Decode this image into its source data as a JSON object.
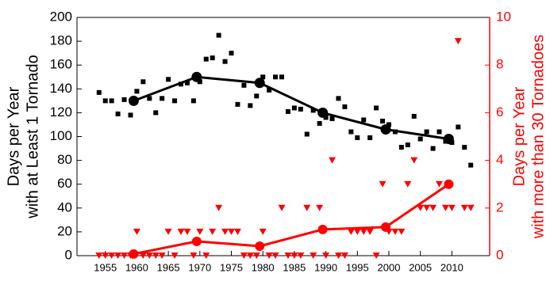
{
  "chart_data": {
    "type": "scatter",
    "ylabel": [
      "Days per Year",
      "with at Least 1 Tornado"
    ],
    "y2label": [
      "Days per Year",
      "with more than 30 Tornadoes"
    ],
    "xlim": [
      1950.5,
      2016
    ],
    "xticks": [
      1955,
      1960,
      1965,
      1970,
      1975,
      1980,
      1985,
      1990,
      1995,
      2000,
      2005,
      2010
    ],
    "ylim": [
      0,
      200
    ],
    "yticks": [
      0,
      20,
      40,
      60,
      80,
      100,
      120,
      140,
      160,
      180,
      200
    ],
    "y2lim": [
      0,
      10
    ],
    "y2ticks": [
      0,
      2,
      4,
      6,
      8,
      10
    ],
    "y2color": "#ff0000",
    "series": [
      {
        "mode": "markers",
        "marker": "square",
        "color": "#000000",
        "x": [
          1954,
          1955,
          1956,
          1957,
          1958,
          1959,
          1960,
          1961,
          1962,
          1963,
          1964,
          1965,
          1966,
          1967,
          1968,
          1969,
          1970,
          1971,
          1972,
          1973,
          1974,
          1975,
          1976,
          1977,
          1978,
          1979,
          1980,
          1981,
          1982,
          1983,
          1984,
          1985,
          1986,
          1987,
          1988,
          1989,
          1990,
          1991,
          1992,
          1993,
          1994,
          1995,
          1996,
          1997,
          1998,
          1999,
          2000,
          2001,
          2002,
          2003,
          2004,
          2005,
          2006,
          2007,
          2008,
          2009,
          2010,
          2011,
          2012,
          2013
        ],
        "values": [
          137,
          130,
          130,
          119,
          131,
          118,
          138,
          146,
          132,
          120,
          132,
          148,
          130,
          144,
          145,
          130,
          146,
          165,
          166,
          185,
          163,
          170,
          127,
          143,
          126,
          134,
          150,
          139,
          150,
          150,
          121,
          124,
          123,
          102,
          122,
          111,
          116,
          115,
          132,
          125,
          104,
          99,
          114,
          99,
          124,
          113,
          110,
          104,
          91,
          93,
          117,
          98,
          104,
          90,
          104,
          96,
          95,
          108,
          91,
          76
        ]
      },
      {
        "mode": "lines+markers",
        "marker": "circle",
        "color": "#000000",
        "x": [
          1959.5,
          1969.5,
          1979.5,
          1989.5,
          1999.5,
          2009.5
        ],
        "values": [
          130,
          150,
          145,
          120,
          106,
          98
        ]
      },
      {
        "mode": "markers",
        "marker": "triangle-down",
        "color": "#ff0000",
        "axis": "y2",
        "x": [
          1954,
          1955,
          1956,
          1957,
          1958,
          1959,
          1960,
          1961,
          1962,
          1963,
          1964,
          1965,
          1966,
          1967,
          1968,
          1969,
          1970,
          1971,
          1972,
          1973,
          1974,
          1975,
          1976,
          1977,
          1978,
          1979,
          1980,
          1981,
          1982,
          1983,
          1984,
          1985,
          1986,
          1987,
          1988,
          1989,
          1990,
          1991,
          1992,
          1993,
          1994,
          1995,
          1996,
          1997,
          1998,
          1999,
          2000,
          2001,
          2002,
          2003,
          2004,
          2005,
          2006,
          2007,
          2008,
          2009,
          2010,
          2011,
          2012,
          2013
        ],
        "values": [
          0,
          0,
          0,
          0,
          0,
          0,
          1,
          0,
          0,
          0,
          0,
          1,
          0,
          1,
          1,
          0,
          1,
          0,
          1,
          2,
          1,
          1,
          1,
          0,
          0,
          0,
          1,
          0,
          0,
          2,
          0,
          0,
          0,
          2,
          0,
          2,
          0,
          4,
          0,
          0,
          1,
          1,
          1,
          1,
          0,
          3,
          1,
          1,
          1,
          3,
          4,
          2,
          2,
          2,
          3,
          2,
          2,
          9,
          2,
          2
        ]
      },
      {
        "mode": "lines+markers",
        "marker": "circle",
        "color": "#ff0000",
        "axis": "y2",
        "x": [
          1959.5,
          1969.5,
          1979.5,
          1989.5,
          1999.5,
          2009.5
        ],
        "values": [
          0.07,
          0.6,
          0.4,
          1.1,
          1.2,
          3.0
        ]
      }
    ]
  }
}
